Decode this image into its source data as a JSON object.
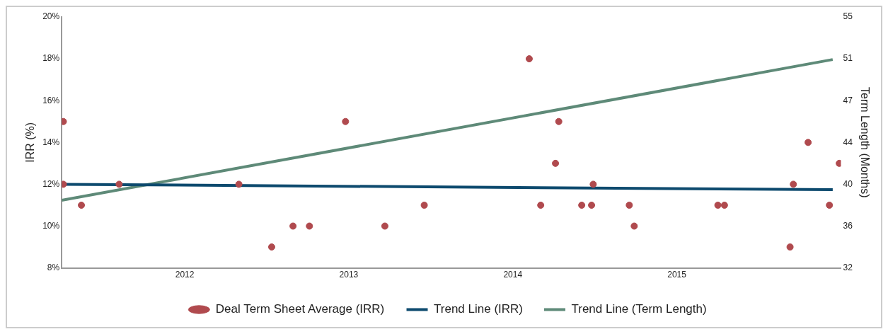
{
  "chart_data": {
    "type": "scatter",
    "ylabel": "IRR (%)",
    "y2label": "Term Length (Months)",
    "xlim": [
      2011.25,
      2016.0
    ],
    "xticks": [
      2012,
      2013,
      2014,
      2015
    ],
    "ylim": [
      8,
      20
    ],
    "yticks": [
      {
        "value": 8,
        "label": "8%"
      },
      {
        "value": 10,
        "label": "10%"
      },
      {
        "value": 12,
        "label": "12%"
      },
      {
        "value": 14,
        "label": "14%"
      },
      {
        "value": 16,
        "label": "16%"
      },
      {
        "value": 18,
        "label": "18%"
      },
      {
        "value": 20,
        "label": "20%"
      }
    ],
    "y2lim": [
      32,
      55
    ],
    "y2ticks": [
      32,
      {
        "value": 35.83,
        "label": "36"
      },
      {
        "value": 39.67,
        "label": "40"
      },
      {
        "value": 43.5,
        "label": "44"
      },
      {
        "value": 47.33,
        "label": "47"
      },
      {
        "value": 51.17,
        "label": "51"
      },
      55
    ],
    "grid": false,
    "legend": "bottom",
    "series": [
      {
        "name": "Deal Term Sheet Average (IRR)",
        "type": "scatter",
        "marker": "circle",
        "color": "#b04a4e",
        "x": [
          2011.26,
          2011.26,
          2011.37,
          2011.6,
          2012.33,
          2012.53,
          2012.66,
          2012.76,
          2012.98,
          2013.22,
          2013.46,
          2014.1,
          2014.17,
          2014.26,
          2014.28,
          2014.42,
          2014.48,
          2014.49,
          2014.71,
          2014.74,
          2015.25,
          2015.29,
          2015.69,
          2015.71,
          2015.8,
          2015.93,
          2015.99
        ],
        "values": [
          15,
          12,
          11,
          12,
          12,
          9,
          10,
          10,
          15,
          10,
          11,
          18,
          11,
          13,
          15,
          11,
          11,
          12,
          11,
          10,
          11,
          11,
          9,
          12,
          14,
          11,
          13
        ]
      },
      {
        "name": "Trend Line (IRR)",
        "type": "line",
        "marker": "none",
        "color": "#0d4a6e",
        "x": [
          2011.25,
          2015.95
        ],
        "values": [
          12.0,
          11.74
        ]
      },
      {
        "name": "Trend Line (Term Length)",
        "type": "line",
        "marker": "none",
        "axis": "y2",
        "color": "#5e8a78",
        "x": [
          2011.25,
          2015.95
        ],
        "values": [
          38.2,
          51.1
        ]
      }
    ]
  }
}
